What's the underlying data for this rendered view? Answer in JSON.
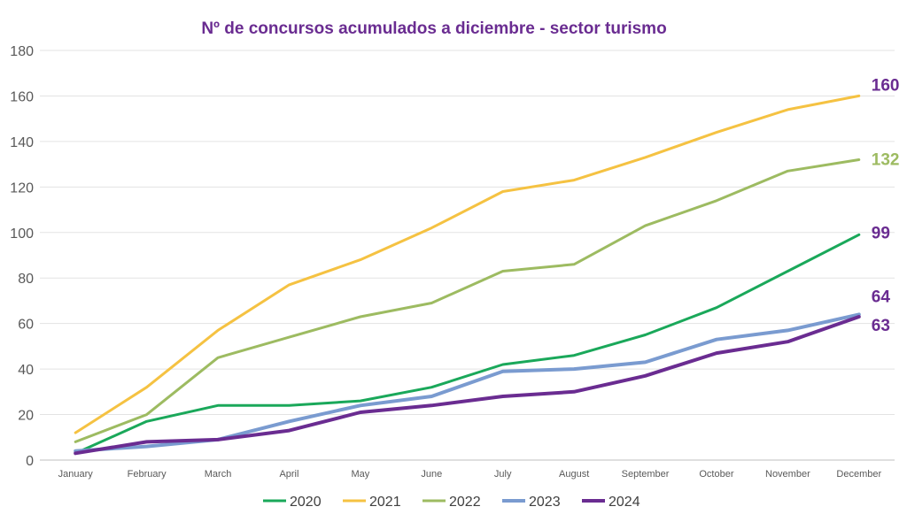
{
  "chart_data": {
    "type": "line",
    "title": "Nº de concursos acumulados a diciembre - sector turismo",
    "categories": [
      "January",
      "February",
      "March",
      "April",
      "May",
      "June",
      "July",
      "August",
      "September",
      "October",
      "November",
      "December"
    ],
    "ylim": [
      0,
      180
    ],
    "yticks": [
      0,
      20,
      40,
      60,
      80,
      100,
      120,
      140,
      160,
      180
    ],
    "grid": "horizontal",
    "legend_position": "bottom",
    "series": [
      {
        "name": "2020",
        "color": "#1aa85a",
        "values": [
          3,
          17,
          24,
          24,
          26,
          32,
          42,
          46,
          55,
          67,
          83,
          99
        ],
        "end_label": "99"
      },
      {
        "name": "2021",
        "color": "#f5c242",
        "values": [
          12,
          32,
          57,
          77,
          88,
          102,
          118,
          123,
          133,
          144,
          154,
          160
        ],
        "end_label": "160"
      },
      {
        "name": "2022",
        "color": "#9dbb61",
        "values": [
          8,
          20,
          45,
          54,
          63,
          69,
          83,
          86,
          103,
          114,
          127,
          132
        ],
        "end_label": "132"
      },
      {
        "name": "2023",
        "color": "#7a9bd0",
        "values": [
          4,
          6,
          9,
          17,
          24,
          28,
          39,
          40,
          43,
          53,
          57,
          64
        ],
        "end_label": "64"
      },
      {
        "name": "2024",
        "color": "#6a2c91",
        "values": [
          3,
          8,
          9,
          13,
          21,
          24,
          28,
          30,
          37,
          47,
          52,
          63
        ],
        "end_label": "63"
      }
    ],
    "title_color": "#6a2c91",
    "end_label_color": "#6a2c91"
  }
}
